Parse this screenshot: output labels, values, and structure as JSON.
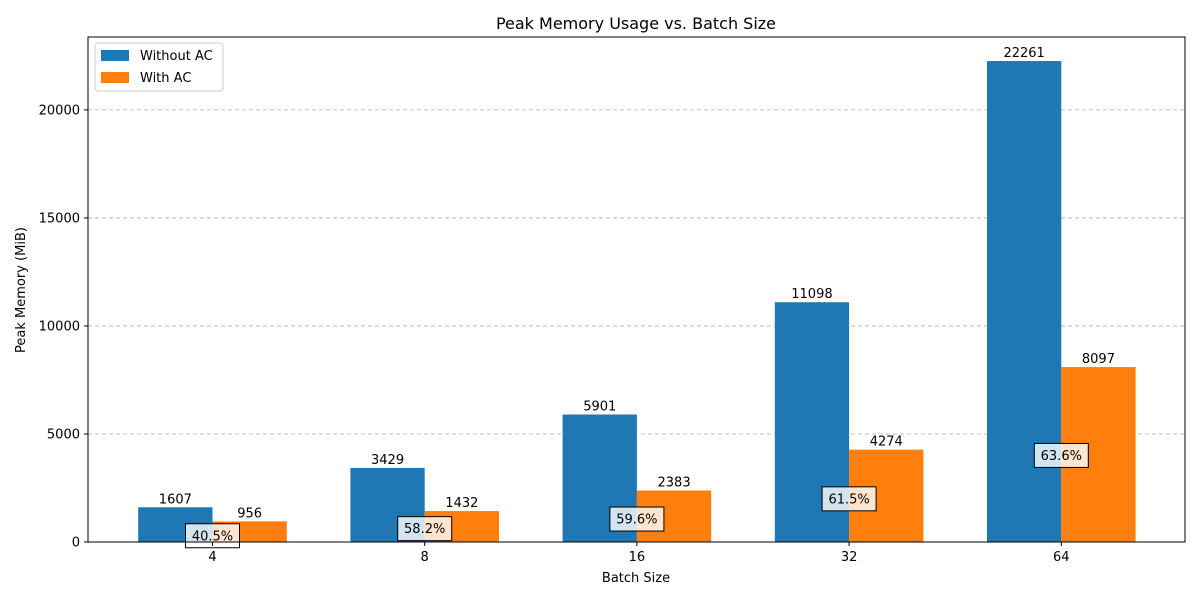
{
  "chart_data": {
    "type": "bar",
    "title": "Peak Memory Usage vs. Batch Size",
    "xlabel": "Batch Size",
    "ylabel": "Peak Memory (MiB)",
    "categories": [
      "4",
      "8",
      "16",
      "32",
      "64"
    ],
    "series": [
      {
        "name": "Without AC",
        "color": "#1f77b4",
        "values": [
          1607,
          3429,
          5901,
          11098,
          22261
        ]
      },
      {
        "name": "With AC",
        "color": "#ff7f0e",
        "values": [
          956,
          1432,
          2383,
          4274,
          8097
        ]
      }
    ],
    "reduction_labels": [
      "40.5%",
      "58.2%",
      "59.6%",
      "61.5%",
      "63.6%"
    ],
    "yticks": [
      0,
      5000,
      10000,
      15000,
      20000
    ],
    "ylim": [
      0,
      23374
    ],
    "grid": "y-dashed",
    "legend_position": "top-left"
  }
}
